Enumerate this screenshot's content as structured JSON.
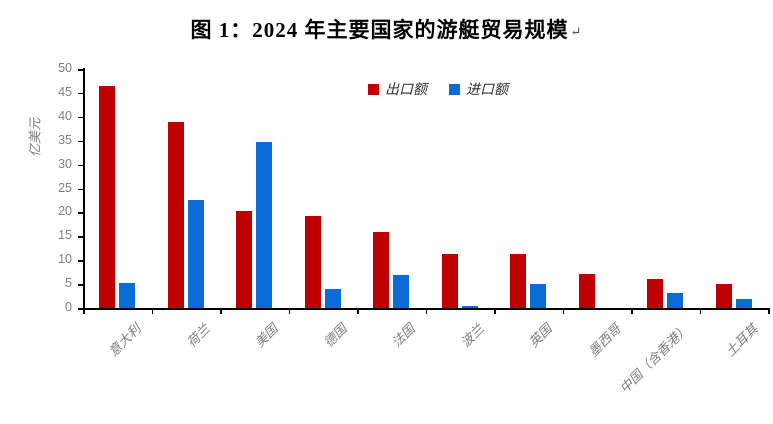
{
  "title": {
    "text": "图 1：2024 年主要国家的游艇贸易规模",
    "paragraph_mark": "↵"
  },
  "chart_data": {
    "type": "bar",
    "title": "图 1：2024 年主要国家的游艇贸易规模",
    "xlabel": "",
    "ylabel": "亿美元",
    "ylim": [
      0,
      50
    ],
    "yticks": [
      0,
      5,
      10,
      15,
      20,
      25,
      30,
      35,
      40,
      45,
      50
    ],
    "grid": false,
    "legend_position": "top-center-inside",
    "categories": [
      "意大利",
      "荷兰",
      "美国",
      "德国",
      "法国",
      "波兰",
      "英国",
      "墨西哥",
      "中国（含香港）",
      "土耳其"
    ],
    "series": [
      {
        "name": "出口额",
        "color": "#c00000",
        "values": [
          46.5,
          39.0,
          20.3,
          19.3,
          16.0,
          11.2,
          11.2,
          7.2,
          6.0,
          5.0
        ]
      },
      {
        "name": "进口额",
        "color": "#0b6cd8",
        "values": [
          5.2,
          22.5,
          34.7,
          4.0,
          7.0,
          0.5,
          5.1,
          0,
          3.2,
          1.8
        ]
      }
    ]
  },
  "colors": {
    "axis": "#000000",
    "tick_label": "#7f7f7f",
    "axis_title": "#7f7f7f",
    "category_label": "#7f7f7f"
  }
}
